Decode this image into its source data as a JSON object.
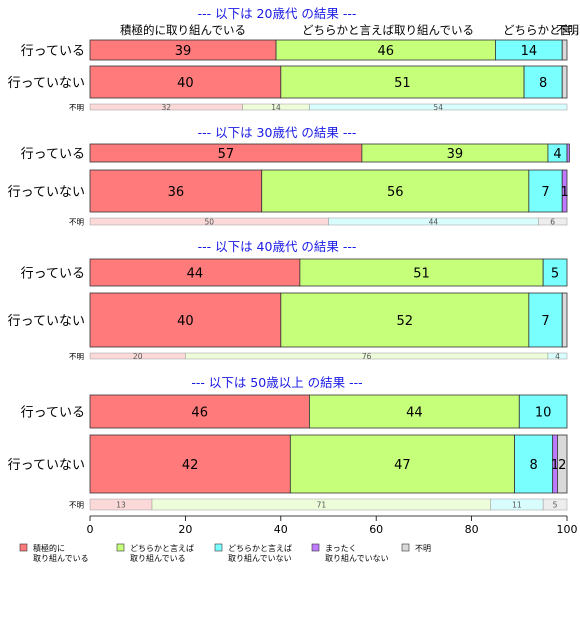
{
  "chart_data": {
    "type": "bar",
    "orientation": "horizontal",
    "stacked": true,
    "xlim": [
      0,
      100
    ],
    "x_ticks": [
      "0",
      "20",
      "40",
      "60",
      "80",
      "100"
    ],
    "header_labels": [
      "積極的に取り組んでいる",
      "どちらかと言えば取り組んでいる",
      "どちらかと言...",
      "不明..."
    ],
    "legend": {
      "placement": "bottom",
      "entries": [
        {
          "label_lines": [
            "積極的に",
            "取り組んでいる"
          ],
          "color": "#FF7A7A"
        },
        {
          "label_lines": [
            "どちらかと言えば",
            "取り組んでいる"
          ],
          "color": "#C6FF7A"
        },
        {
          "label_lines": [
            "どちらかと言えば",
            "取り組んでいない"
          ],
          "color": "#7AFFFF"
        },
        {
          "label_lines": [
            "まったく",
            "取り組んでいない"
          ],
          "color": "#C07AFF"
        },
        {
          "label_lines": [
            "不明"
          ],
          "color": "#D9D9D9"
        }
      ]
    },
    "panels": [
      {
        "title": "--- 以下は 20歳代 の結果 ---",
        "rows": [
          {
            "label": "行っている",
            "values": [
              39,
              46,
              14,
              0,
              1
            ],
            "labels": [
              "39",
              "46",
              "14",
              "",
              ""
            ]
          },
          {
            "label": "行っていない",
            "values": [
              40,
              51,
              8,
              0,
              1
            ],
            "labels": [
              "40",
              "51",
              "8",
              "",
              ""
            ]
          },
          {
            "label": "不明",
            "values": [
              32,
              14,
              54,
              0,
              0
            ],
            "labels": [
              "32",
              "14",
              "54",
              "",
              ""
            ]
          }
        ]
      },
      {
        "title": "--- 以下は 30歳代 の結果 ---",
        "rows": [
          {
            "label": "行っている",
            "values": [
              57,
              39,
              4,
              0.5,
              0
            ],
            "labels": [
              "57",
              "39",
              "4",
              "",
              ""
            ]
          },
          {
            "label": "行っていない",
            "values": [
              36,
              56,
              7,
              1,
              0
            ],
            "labels": [
              "36",
              "56",
              "7",
              "1",
              ""
            ]
          },
          {
            "label": "不明",
            "values": [
              50,
              0,
              44,
              0,
              6
            ],
            "labels": [
              "50",
              "",
              "44",
              "",
              "6"
            ]
          }
        ]
      },
      {
        "title": "--- 以下は 40歳代 の結果 ---",
        "rows": [
          {
            "label": "行っている",
            "values": [
              44,
              51,
              5,
              0,
              0
            ],
            "labels": [
              "44",
              "51",
              "5",
              "",
              ""
            ]
          },
          {
            "label": "行っていない",
            "values": [
              40,
              52,
              7,
              0,
              1
            ],
            "labels": [
              "40",
              "52",
              "7",
              "",
              ""
            ]
          },
          {
            "label": "不明",
            "values": [
              20,
              76,
              4,
              0,
              0
            ],
            "labels": [
              "20",
              "76",
              "4",
              "",
              ""
            ]
          }
        ]
      },
      {
        "title": "--- 以下は 50歳以上 の結果 ---",
        "rows": [
          {
            "label": "行っている",
            "values": [
              46,
              44,
              10,
              0,
              0
            ],
            "labels": [
              "46",
              "44",
              "10",
              "",
              ""
            ]
          },
          {
            "label": "行っていない",
            "values": [
              42,
              47,
              8,
              1,
              2
            ],
            "labels": [
              "42",
              "47",
              "8",
              "1",
              "2"
            ]
          },
          {
            "label": "不明",
            "values": [
              13,
              71,
              11,
              0,
              5
            ],
            "labels": [
              "13",
              "71",
              "11",
              "",
              "5"
            ]
          }
        ]
      }
    ]
  }
}
